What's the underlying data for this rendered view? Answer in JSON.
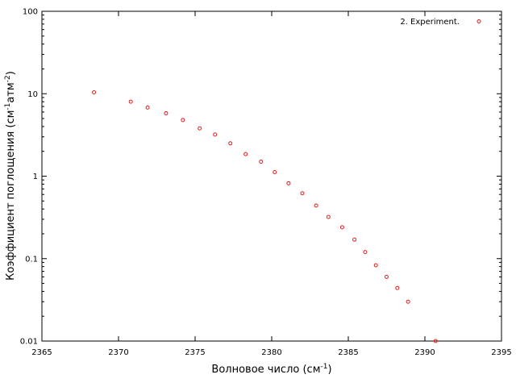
{
  "chart_data": {
    "type": "scatter",
    "xlabel": {
      "main": "Волновое число (см",
      "sup": "-1",
      "end": ")"
    },
    "ylabel": {
      "main": "Коэффициент поглощения (см",
      "sup1": "-1",
      "mid": "атм",
      "sup2": "-2",
      "end": ")"
    },
    "xlim": [
      2365,
      2395
    ],
    "ylim": [
      0.01,
      100
    ],
    "yscale": "log",
    "grid": false,
    "legend_position": "top-right",
    "x_ticks": [
      {
        "value": 2365,
        "label": "2365"
      },
      {
        "value": 2370,
        "label": "2370"
      },
      {
        "value": 2375,
        "label": "2375"
      },
      {
        "value": 2380,
        "label": "2380"
      },
      {
        "value": 2385,
        "label": "2385"
      },
      {
        "value": 2390,
        "label": "2390"
      },
      {
        "value": 2395,
        "label": "2395"
      }
    ],
    "y_ticks": [
      {
        "value": 0.01,
        "label": "0.01"
      },
      {
        "value": 0.1,
        "label": "0.1"
      },
      {
        "value": 1,
        "label": "1"
      },
      {
        "value": 10,
        "label": "10"
      },
      {
        "value": 100,
        "label": "100"
      }
    ],
    "series": [
      {
        "name": "2. Experiment.",
        "color": "#e31a1c",
        "marker": "circle-open",
        "points": [
          {
            "x": 2368.4,
            "y": 10.4
          },
          {
            "x": 2370.8,
            "y": 8.0
          },
          {
            "x": 2371.9,
            "y": 6.8
          },
          {
            "x": 2373.1,
            "y": 5.8
          },
          {
            "x": 2374.2,
            "y": 4.8
          },
          {
            "x": 2375.3,
            "y": 3.8
          },
          {
            "x": 2376.3,
            "y": 3.2
          },
          {
            "x": 2377.3,
            "y": 2.5
          },
          {
            "x": 2378.3,
            "y": 1.85
          },
          {
            "x": 2379.3,
            "y": 1.5
          },
          {
            "x": 2380.2,
            "y": 1.12
          },
          {
            "x": 2381.1,
            "y": 0.82
          },
          {
            "x": 2382.0,
            "y": 0.62
          },
          {
            "x": 2382.9,
            "y": 0.44
          },
          {
            "x": 2383.7,
            "y": 0.32
          },
          {
            "x": 2384.6,
            "y": 0.24
          },
          {
            "x": 2385.4,
            "y": 0.17
          },
          {
            "x": 2386.1,
            "y": 0.12
          },
          {
            "x": 2386.8,
            "y": 0.083
          },
          {
            "x": 2387.5,
            "y": 0.06
          },
          {
            "x": 2388.2,
            "y": 0.044
          },
          {
            "x": 2388.9,
            "y": 0.03
          },
          {
            "x": 2390.7,
            "y": 0.01
          }
        ]
      }
    ]
  }
}
